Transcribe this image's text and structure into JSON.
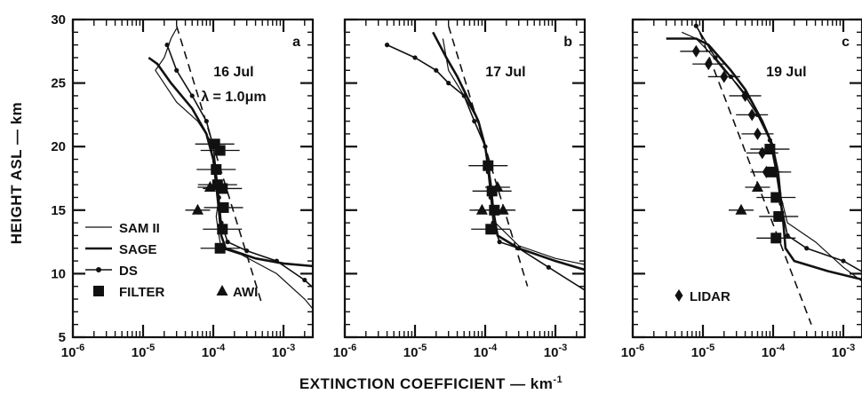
{
  "figure": {
    "xlabel": "EXTINCTION COEFFICIENT — km",
    "xlabel_sup": "-1",
    "ylabel": "HEIGHT ASL — km"
  },
  "chart_data": [
    {
      "type": "line",
      "panel_letter": "a",
      "date_label": "16 Jul",
      "wavelength_label": "λ = 1.0μm",
      "x_scale": "log",
      "xlim": [
        1e-06,
        0.005
      ],
      "ylim": [
        5,
        30
      ],
      "x_ticks": [
        "10^-6",
        "10^-5",
        "10^-4",
        "10^-3"
      ],
      "y_ticks": [
        5,
        10,
        15,
        20,
        25,
        30
      ],
      "legend": [
        {
          "name": "SAM II",
          "style": "thin-line"
        },
        {
          "name": "SAGE",
          "style": "thick-line"
        },
        {
          "name": "DS",
          "style": "line-dots"
        },
        {
          "name": "FILTER",
          "style": "square"
        },
        {
          "name": "AWI",
          "style": "triangle"
        }
      ],
      "series": [
        {
          "name": "SAM II",
          "x": [
            3e-05,
            2.5e-05,
            2e-05,
            1.5e-05,
            3e-05,
            6e-05,
            9e-05,
            0.0001,
            0.00011,
            0.00012,
            0.00011,
            0.00012,
            0.00013,
            0.00025,
            0.0008,
            0.002,
            0.004
          ],
          "y": [
            29.3,
            28.5,
            27.0,
            26.0,
            23.5,
            22.0,
            20.5,
            19.0,
            17.5,
            16.0,
            14.5,
            13.0,
            12.0,
            11.5,
            10.0,
            8.0,
            6.0
          ]
        },
        {
          "name": "SAGE",
          "x": [
            1.2e-05,
            1.6e-05,
            2.5e-05,
            5e-05,
            8e-05,
            0.0001,
            0.00011,
            0.00012,
            0.00013,
            0.00015,
            0.0004,
            0.001,
            0.004
          ],
          "y": [
            27.0,
            26.5,
            25.0,
            23.0,
            21.0,
            19.0,
            17.0,
            15.0,
            13.0,
            12.0,
            11.2,
            10.8,
            10.5
          ]
        },
        {
          "name": "DS",
          "x": [
            2.2e-05,
            3e-05,
            5e-05,
            8e-05,
            0.0001,
            0.00011,
            0.00012,
            0.00013,
            0.00016,
            0.0003,
            0.0008,
            0.002,
            0.004
          ],
          "y": [
            28.0,
            26.0,
            24.0,
            22.0,
            20.0,
            18.0,
            16.0,
            14.0,
            12.5,
            11.8,
            11.0,
            9.5,
            8.0
          ]
        },
        {
          "name": "FILTER",
          "x": [
            0.000105,
            0.000125,
            0.00011,
            0.000115,
            0.000135,
            0.00014,
            0.000135,
            0.000125
          ],
          "y": [
            20.2,
            19.7,
            18.2,
            17.0,
            16.7,
            15.2,
            13.5,
            12.0
          ]
        },
        {
          "name": "AWI",
          "x": [
            6e-05,
            9e-05
          ],
          "y": [
            15.0,
            16.8
          ]
        },
        {
          "name": "reference (dashed)",
          "x": [
            3e-05,
            0.0005
          ],
          "y": [
            29.5,
            7.5
          ]
        }
      ]
    },
    {
      "type": "line",
      "panel_letter": "b",
      "date_label": "17 Jul",
      "x_scale": "log",
      "xlim": [
        1e-06,
        0.005
      ],
      "ylim": [
        5,
        30
      ],
      "x_ticks": [
        "10^-6",
        "10^-5",
        "10^-4",
        "10^-3"
      ],
      "y_ticks": [
        5,
        10,
        15,
        20,
        25,
        30
      ],
      "series": [
        {
          "name": "SAM II",
          "x": [
            2.5e-05,
            3e-05,
            5e-05,
            8e-05,
            0.0001,
            0.00011,
            0.00012,
            0.00014,
            0.0003,
            0.001,
            0.004
          ],
          "y": [
            28.5,
            26.0,
            24.0,
            22.0,
            20.0,
            18.0,
            16.0,
            14.0,
            12.2,
            11.2,
            10.5
          ]
        },
        {
          "name": "SAGE",
          "x": [
            1.8e-05,
            2.8e-05,
            4e-05,
            6e-05,
            8e-05,
            0.0001,
            0.00012,
            0.00013,
            0.00015,
            0.0003,
            0.001,
            0.004
          ],
          "y": [
            29.0,
            27.0,
            25.5,
            23.5,
            22.0,
            20.0,
            17.0,
            15.0,
            13.0,
            12.0,
            11.0,
            10.0
          ]
        },
        {
          "name": "DS",
          "x": [
            4e-06,
            1e-05,
            2e-05,
            3e-05,
            5e-05,
            7e-05,
            0.0001,
            0.00011,
            0.00012,
            0.00013,
            0.00016,
            0.0003,
            0.0008,
            0.003
          ],
          "y": [
            28.0,
            27.0,
            26.0,
            25.0,
            24.0,
            22.0,
            20.0,
            18.0,
            16.0,
            14.0,
            12.5,
            12.0,
            10.5,
            8.5
          ]
        },
        {
          "name": "FILTER",
          "x": [
            0.00011,
            0.000125,
            0.000135,
            0.00012
          ],
          "y": [
            18.5,
            16.5,
            15.0,
            13.5
          ]
        },
        {
          "name": "AWI",
          "x": [
            9e-05,
            0.00015,
            0.00018
          ],
          "y": [
            15.0,
            16.8,
            15.0
          ]
        },
        {
          "name": "reference (dashed)",
          "x": [
            3e-05,
            0.0004
          ],
          "y": [
            29.5,
            9.0
          ]
        }
      ]
    },
    {
      "type": "line",
      "panel_letter": "c",
      "date_label": "19 Jul",
      "x_scale": "log",
      "xlim": [
        1e-06,
        0.005
      ],
      "ylim": [
        5,
        30
      ],
      "x_ticks": [
        "10^-6",
        "10^-5",
        "10^-4",
        "10^-3"
      ],
      "y_ticks": [
        5,
        10,
        15,
        20,
        25,
        30
      ],
      "legend": [
        {
          "name": "LIDAR",
          "style": "diamond"
        }
      ],
      "series": [
        {
          "name": "SAM II",
          "x": [
            5e-06,
            8e-06,
            1.2e-05,
            2e-05,
            3e-05,
            5e-05,
            7e-05,
            0.0001,
            0.00012,
            0.00013,
            0.00016,
            0.0004,
            0.001,
            0.004
          ],
          "y": [
            29.0,
            28.5,
            27.5,
            26.0,
            25.0,
            23.5,
            22.0,
            20.0,
            18.0,
            16.0,
            14.0,
            12.5,
            10.5,
            8.0
          ]
        },
        {
          "name": "SAGE",
          "x": [
            3e-06,
            8e-06,
            1.2e-05,
            2.5e-05,
            4e-05,
            7e-05,
            0.0001,
            0.00012,
            0.00014,
            0.00015,
            0.0002,
            0.0006,
            0.002,
            0.004
          ],
          "y": [
            28.5,
            28.5,
            28.0,
            26.0,
            24.5,
            22.0,
            20.0,
            17.0,
            14.0,
            12.0,
            11.0,
            10.2,
            9.5,
            9.0
          ]
        },
        {
          "name": "DS",
          "x": [
            8e-06,
            1.5e-05,
            2.5e-05,
            4e-05,
            6e-05,
            9e-05,
            0.00011,
            0.00013,
            0.00016,
            0.0003,
            0.001,
            0.003
          ],
          "y": [
            29.5,
            27.0,
            25.5,
            24.0,
            22.5,
            20.5,
            18.0,
            15.5,
            13.0,
            12.0,
            11.0,
            9.5
          ]
        },
        {
          "name": "FILTER",
          "x": [
            9e-05,
            9.5e-05,
            0.00011,
            0.00012,
            0.00011
          ],
          "y": [
            19.8,
            18.0,
            16.0,
            14.5,
            12.8
          ]
        },
        {
          "name": "AWI",
          "x": [
            3.5e-05,
            6e-05
          ],
          "y": [
            15.0,
            16.8
          ]
        },
        {
          "name": "LIDAR",
          "x": [
            8e-06,
            1.2e-05,
            2e-05,
            4e-05,
            5e-05,
            6e-05,
            7e-05,
            8e-05
          ],
          "y": [
            27.5,
            26.5,
            25.5,
            24.0,
            22.5,
            21.0,
            19.5,
            18.0
          ]
        },
        {
          "name": "reference (dashed)",
          "x": [
            9e-06,
            0.00035
          ],
          "y": [
            29.0,
            6.0
          ]
        }
      ]
    }
  ]
}
